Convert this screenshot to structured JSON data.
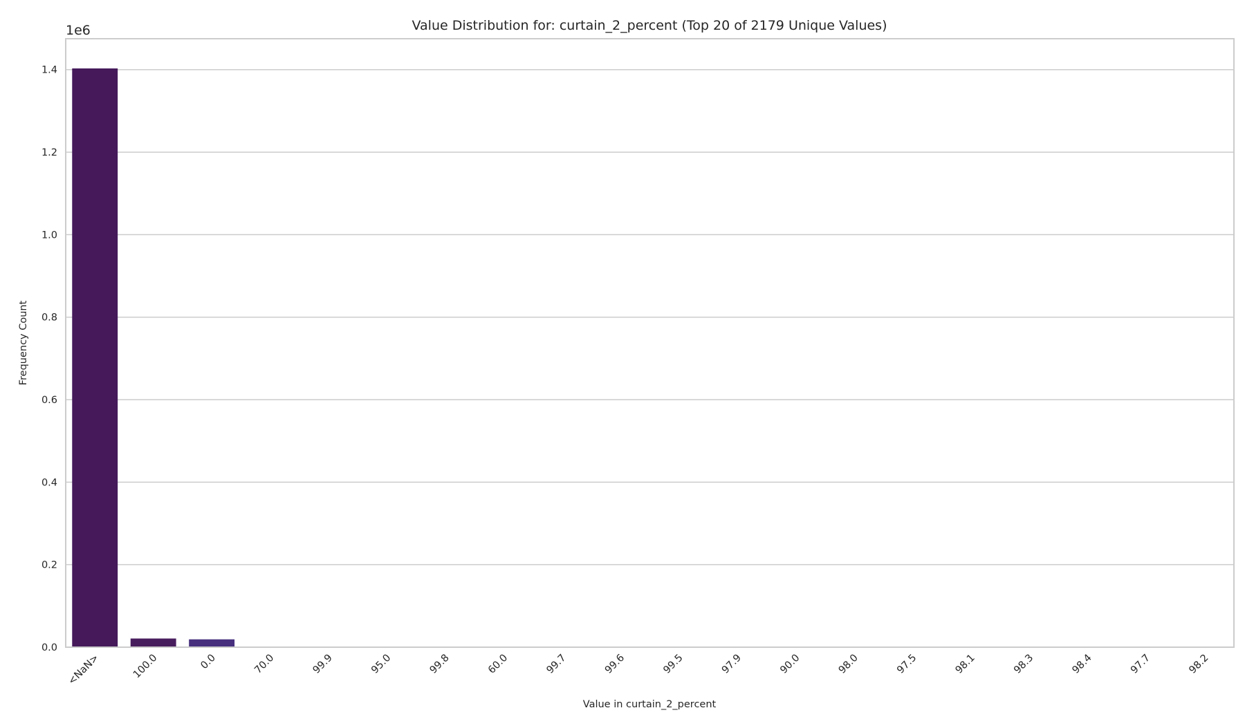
{
  "chart_data": {
    "type": "bar",
    "title": "Value Distribution for: curtain_2_percent (Top 20 of 2179 Unique Values)",
    "xlabel": "Value in curtain_2_percent",
    "ylabel": "Frequency Count",
    "y_offset_label": "1e6",
    "ylim": [
      0,
      1.475
    ],
    "yticks": [
      "0.0",
      "0.2",
      "0.4",
      "0.6",
      "0.8",
      "1.0",
      "1.2",
      "1.4"
    ],
    "ytick_values": [
      0.0,
      0.2,
      0.4,
      0.6,
      0.8,
      1.0,
      1.2,
      1.4
    ],
    "grid": true,
    "categories": [
      "<NaN>",
      "100.0",
      "0.0",
      "70.0",
      "99.9",
      "95.0",
      "99.8",
      "60.0",
      "99.7",
      "99.6",
      "99.5",
      "97.9",
      "90.0",
      "98.0",
      "97.5",
      "98.1",
      "98.3",
      "98.4",
      "97.7",
      "98.2"
    ],
    "values": [
      1.403,
      0.021,
      0.019,
      0.0012,
      0.0011,
      0.001,
      0.0009,
      0.0009,
      0.0008,
      0.0008,
      0.0008,
      0.0007,
      0.0007,
      0.0007,
      0.0007,
      0.0006,
      0.0006,
      0.0006,
      0.0006,
      0.0006
    ],
    "colors": [
      "#45195a",
      "#481d5e",
      "#472f7d",
      "#423f85",
      "#3d4e8a",
      "#375a8c",
      "#31678e",
      "#2c738e",
      "#277f8e",
      "#23898e",
      "#1f968b",
      "#21a285",
      "#2db27d",
      "#3fbc73",
      "#5ec962",
      "#7ad151",
      "#a0da39",
      "#c2df23",
      "#e2e418",
      "#fde725"
    ]
  }
}
